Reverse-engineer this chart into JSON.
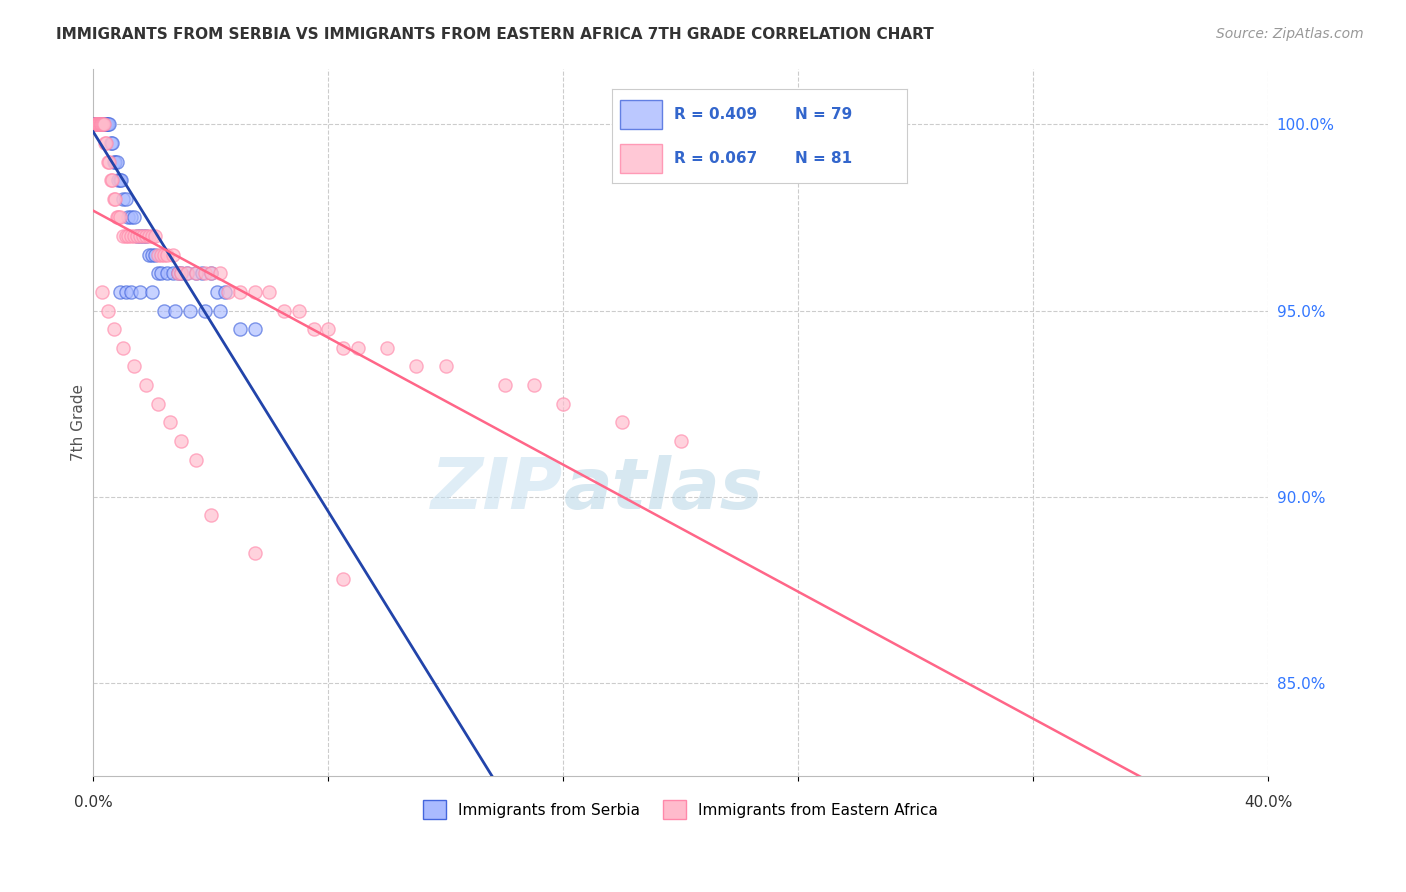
{
  "title": "IMMIGRANTS FROM SERBIA VS IMMIGRANTS FROM EASTERN AFRICA 7TH GRADE CORRELATION CHART",
  "source": "Source: ZipAtlas.com",
  "ylabel": "7th Grade",
  "x_range": [
    0.0,
    40.0
  ],
  "y_range": [
    82.5,
    101.5
  ],
  "serbia_R": 0.409,
  "serbia_N": 79,
  "eastafrica_R": 0.067,
  "eastafrica_N": 81,
  "serbia_face_color": "#aabbff",
  "serbia_edge_color": "#4466dd",
  "eastafrica_face_color": "#ffbbcc",
  "eastafrica_edge_color": "#ff88aa",
  "serbia_line_color": "#2244aa",
  "eastafrica_line_color": "#ff6688",
  "watermark": "ZIPatlas",
  "serbia_x": [
    0.05,
    0.06,
    0.07,
    0.08,
    0.08,
    0.09,
    0.1,
    0.1,
    0.11,
    0.12,
    0.13,
    0.14,
    0.15,
    0.15,
    0.16,
    0.17,
    0.18,
    0.19,
    0.2,
    0.21,
    0.22,
    0.23,
    0.25,
    0.27,
    0.28,
    0.3,
    0.32,
    0.35,
    0.38,
    0.4,
    0.42,
    0.45,
    0.48,
    0.5,
    0.55,
    0.6,
    0.65,
    0.7,
    0.75,
    0.8,
    0.85,
    0.9,
    0.95,
    1.0,
    1.1,
    1.2,
    1.3,
    1.4,
    1.5,
    1.6,
    1.7,
    1.8,
    1.9,
    2.0,
    2.1,
    2.2,
    2.3,
    2.5,
    2.7,
    2.9,
    3.0,
    3.2,
    3.5,
    3.7,
    4.0,
    4.2,
    4.5,
    0.9,
    1.1,
    1.3,
    1.6,
    2.0,
    2.4,
    2.8,
    3.3,
    3.8,
    4.3,
    5.0,
    5.5
  ],
  "serbia_y": [
    100.0,
    100.0,
    100.0,
    100.0,
    100.0,
    100.0,
    100.0,
    100.0,
    100.0,
    100.0,
    100.0,
    100.0,
    100.0,
    100.0,
    100.0,
    100.0,
    100.0,
    100.0,
    100.0,
    100.0,
    100.0,
    100.0,
    100.0,
    100.0,
    100.0,
    100.0,
    100.0,
    100.0,
    100.0,
    100.0,
    100.0,
    100.0,
    100.0,
    100.0,
    100.0,
    99.5,
    99.5,
    99.0,
    99.0,
    99.0,
    98.5,
    98.5,
    98.5,
    98.0,
    98.0,
    97.5,
    97.5,
    97.5,
    97.0,
    97.0,
    97.0,
    97.0,
    96.5,
    96.5,
    96.5,
    96.0,
    96.0,
    96.0,
    96.0,
    96.0,
    96.0,
    96.0,
    96.0,
    96.0,
    96.0,
    95.5,
    95.5,
    95.5,
    95.5,
    95.5,
    95.5,
    95.5,
    95.0,
    95.0,
    95.0,
    95.0,
    95.0,
    94.5,
    94.5
  ],
  "eastafrica_x": [
    0.05,
    0.07,
    0.09,
    0.1,
    0.12,
    0.14,
    0.16,
    0.18,
    0.2,
    0.22,
    0.25,
    0.27,
    0.3,
    0.33,
    0.36,
    0.4,
    0.45,
    0.5,
    0.55,
    0.6,
    0.65,
    0.7,
    0.75,
    0.8,
    0.85,
    0.9,
    1.0,
    1.1,
    1.2,
    1.3,
    1.4,
    1.5,
    1.6,
    1.7,
    1.8,
    1.9,
    2.0,
    2.1,
    2.2,
    2.3,
    2.4,
    2.5,
    2.7,
    2.9,
    3.0,
    3.2,
    3.5,
    3.8,
    4.0,
    4.3,
    4.6,
    5.0,
    5.5,
    6.0,
    6.5,
    7.0,
    7.5,
    8.0,
    8.5,
    9.0,
    10.0,
    11.0,
    12.0,
    14.0,
    15.0,
    16.0,
    18.0,
    20.0,
    0.3,
    0.5,
    0.7,
    1.0,
    1.4,
    1.8,
    2.2,
    2.6,
    3.0,
    3.5,
    4.0,
    5.5,
    8.5
  ],
  "eastafrica_y": [
    100.0,
    100.0,
    100.0,
    100.0,
    100.0,
    100.0,
    100.0,
    100.0,
    100.0,
    100.0,
    100.0,
    100.0,
    100.0,
    100.0,
    100.0,
    99.5,
    99.5,
    99.0,
    99.0,
    98.5,
    98.5,
    98.0,
    98.0,
    97.5,
    97.5,
    97.5,
    97.0,
    97.0,
    97.0,
    97.0,
    97.0,
    97.0,
    97.0,
    97.0,
    97.0,
    97.0,
    97.0,
    97.0,
    96.5,
    96.5,
    96.5,
    96.5,
    96.5,
    96.0,
    96.0,
    96.0,
    96.0,
    96.0,
    96.0,
    96.0,
    95.5,
    95.5,
    95.5,
    95.5,
    95.0,
    95.0,
    94.5,
    94.5,
    94.0,
    94.0,
    94.0,
    93.5,
    93.5,
    93.0,
    93.0,
    92.5,
    92.0,
    91.5,
    95.5,
    95.0,
    94.5,
    94.0,
    93.5,
    93.0,
    92.5,
    92.0,
    91.5,
    91.0,
    89.5,
    88.5,
    87.8
  ]
}
